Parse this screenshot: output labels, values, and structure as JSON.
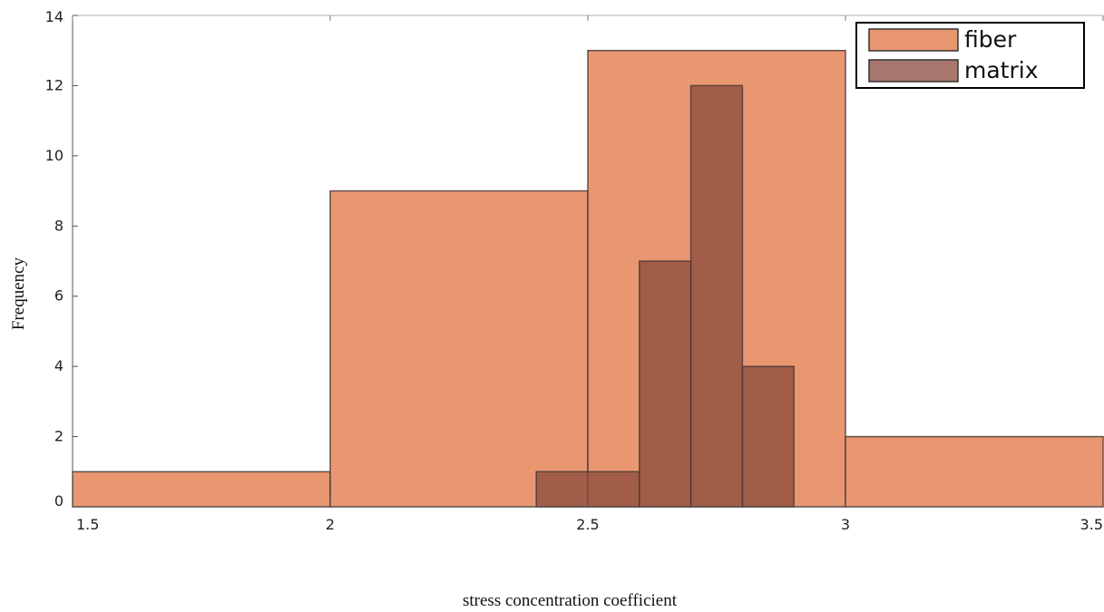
{
  "chart_data": {
    "type": "bar",
    "title": "",
    "xlabel": "stress concentration coefficient",
    "ylabel": "Frequency",
    "xlim": [
      1.5,
      3.5
    ],
    "ylim": [
      0,
      14
    ],
    "xticks": [
      "1.5",
      "2",
      "2.5",
      "3",
      "3.5"
    ],
    "xtick_values": [
      1.5,
      2,
      2.5,
      3,
      3.5
    ],
    "yticks": [
      "0",
      "2",
      "4",
      "6",
      "8",
      "10",
      "12",
      "14"
    ],
    "ytick_values": [
      0,
      2,
      4,
      6,
      8,
      10,
      12,
      14
    ],
    "grid": false,
    "legend_position": "top-right",
    "series": [
      {
        "name": "fiber",
        "color": "#e58c62",
        "bins": [
          {
            "x0": 1.5,
            "x1": 2.0,
            "count": 1
          },
          {
            "x0": 2.0,
            "x1": 2.5,
            "count": 9
          },
          {
            "x0": 2.5,
            "x1": 3.0,
            "count": 13
          },
          {
            "x0": 3.0,
            "x1": 3.5,
            "count": 2
          }
        ]
      },
      {
        "name": "matrix",
        "color": "#8b4a3c",
        "bins": [
          {
            "x0": 2.4,
            "x1": 2.6,
            "count": 1
          },
          {
            "x0": 2.6,
            "x1": 2.7,
            "count": 7
          },
          {
            "x0": 2.7,
            "x1": 2.8,
            "count": 12
          },
          {
            "x0": 2.8,
            "x1": 2.9,
            "count": 4
          }
        ]
      }
    ]
  }
}
